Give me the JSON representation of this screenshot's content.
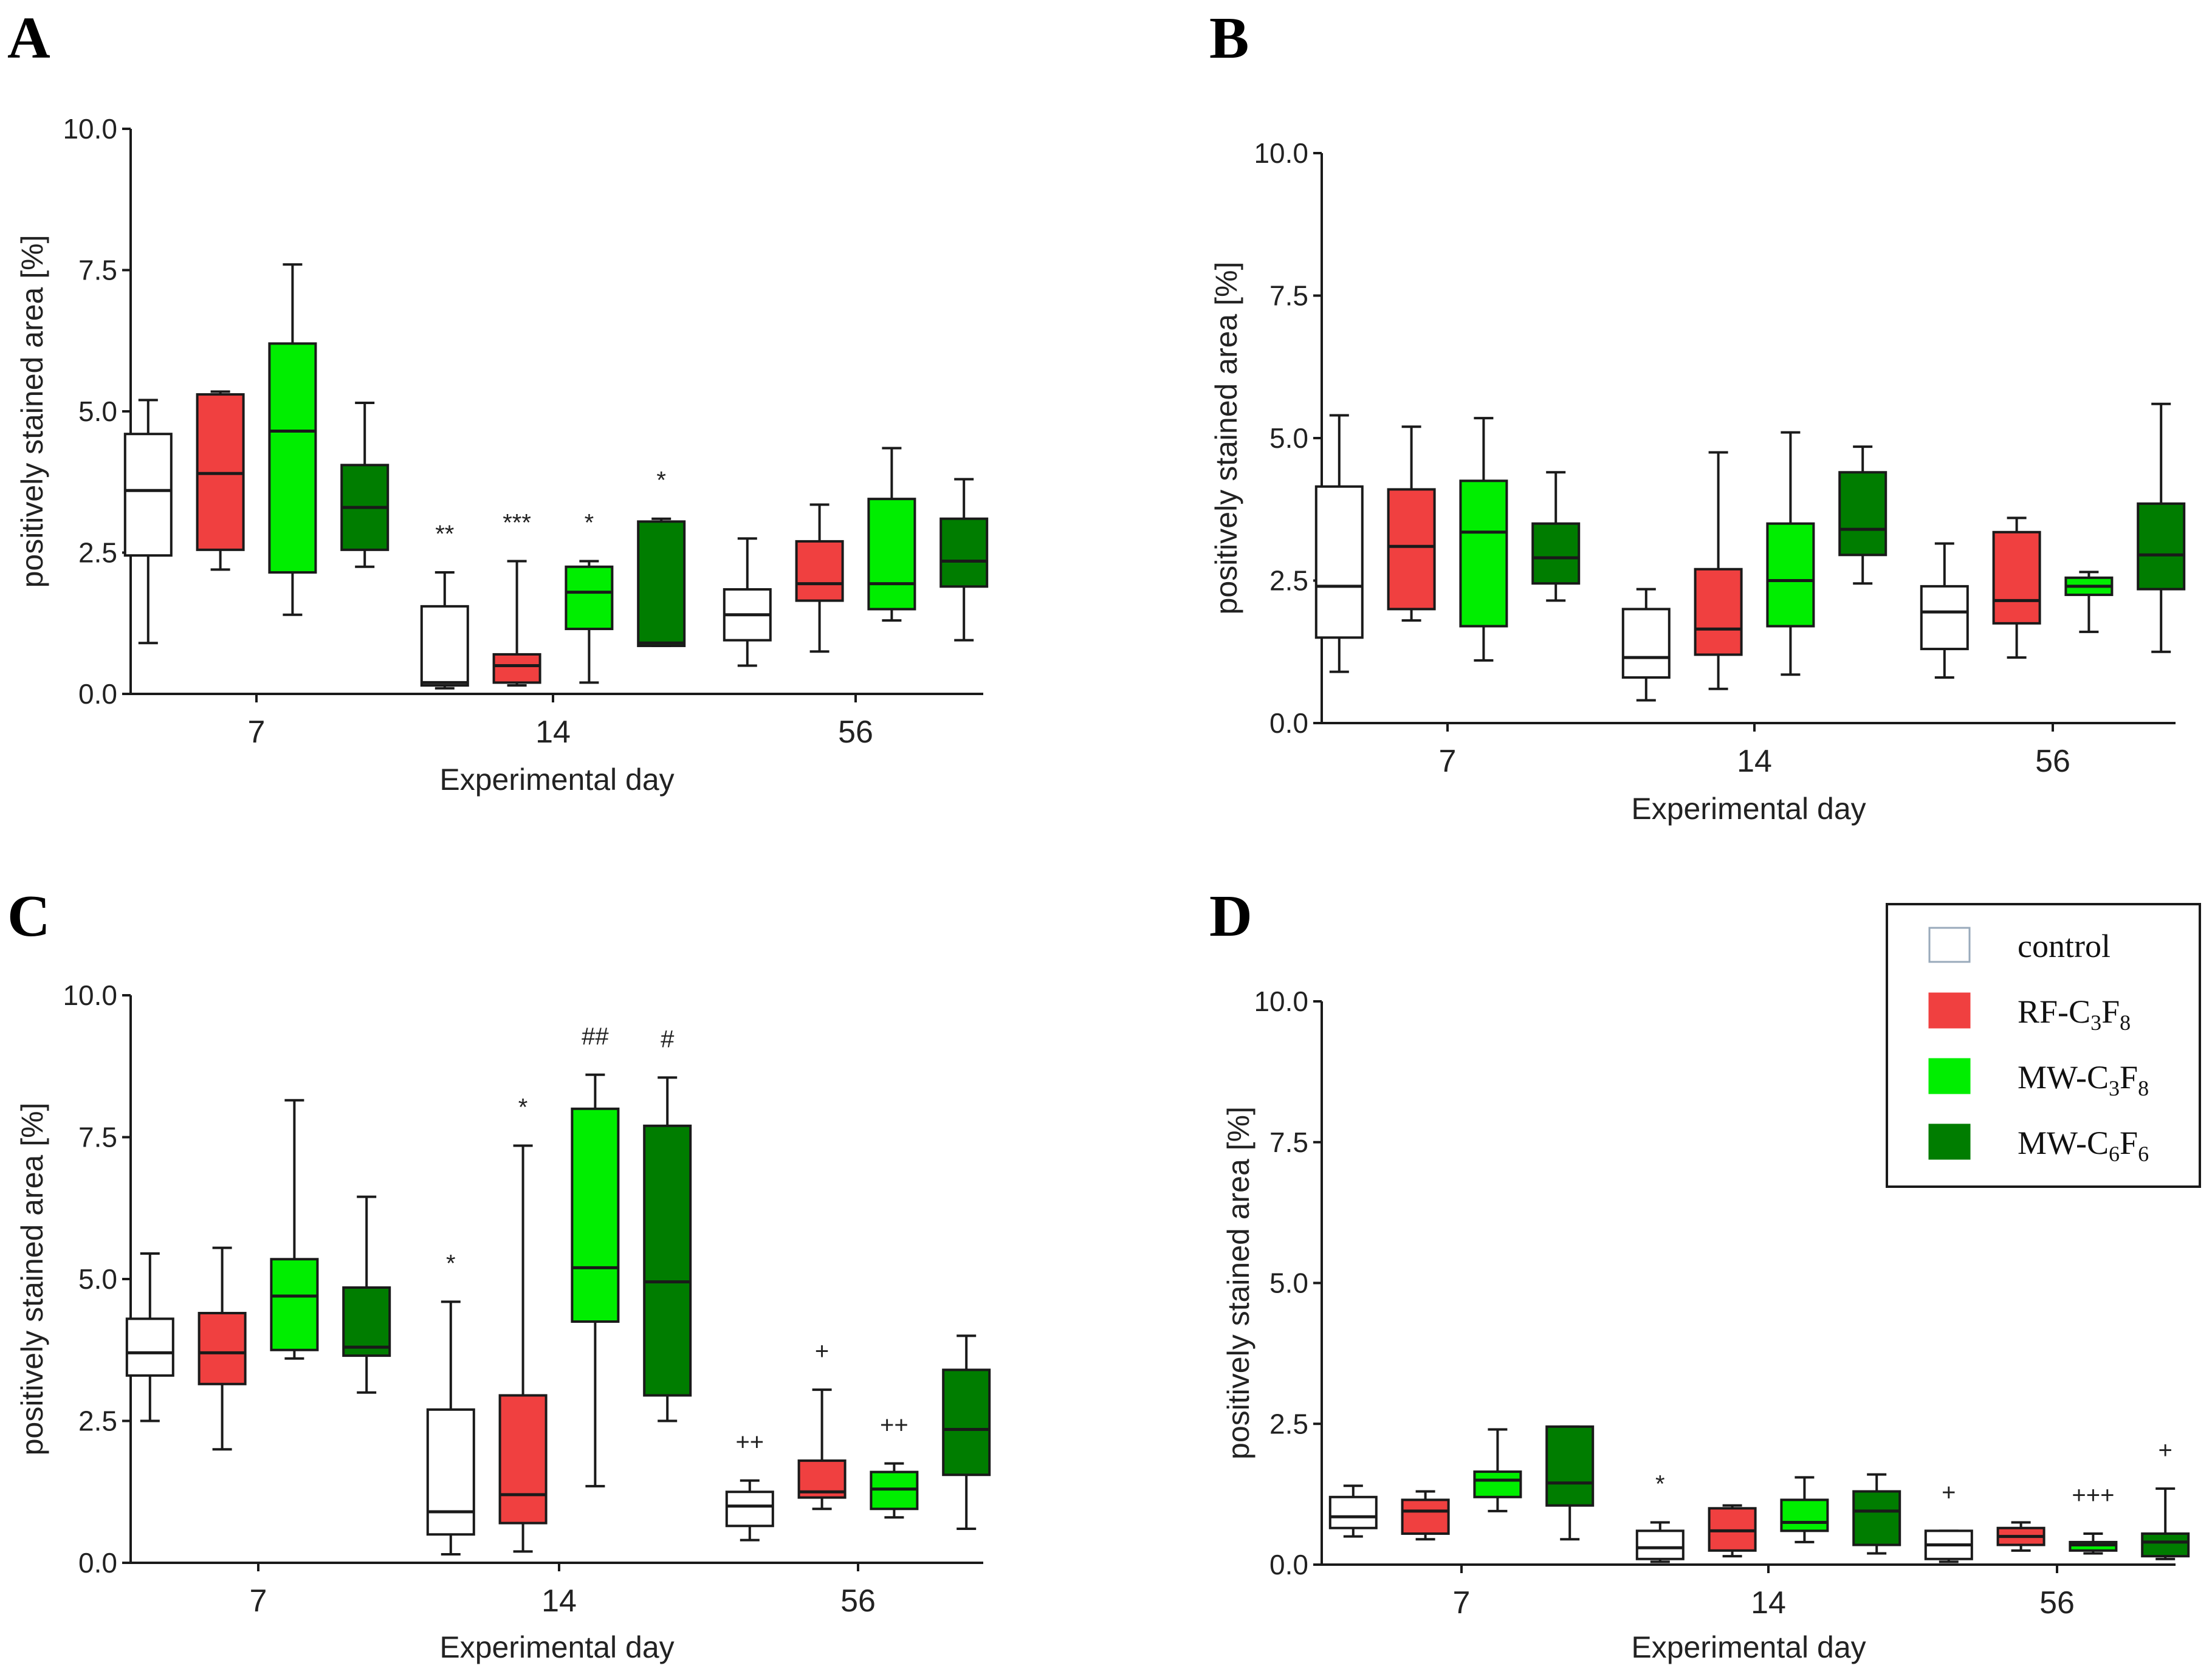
{
  "chart_data": [
    {
      "panel": "A",
      "type": "box",
      "xlabel": "Experimental day",
      "ylabel": "positively stained area [%]",
      "ylim": [
        0,
        10
      ],
      "yticks": [
        "0.0",
        "2.5",
        "5.0",
        "7.5",
        "10.0"
      ],
      "categories": [
        "7",
        "14",
        "56"
      ],
      "series": [
        {
          "name": "control",
          "boxes": [
            {
              "min": 0.9,
              "q1": 2.45,
              "median": 3.6,
              "q3": 4.6,
              "max": 5.2,
              "label": ""
            },
            {
              "min": 0.1,
              "q1": 0.15,
              "median": 0.2,
              "q3": 1.55,
              "max": 2.15,
              "label": "**"
            },
            {
              "min": 0.5,
              "q1": 0.95,
              "median": 1.4,
              "q3": 1.85,
              "max": 2.75,
              "label": ""
            }
          ]
        },
        {
          "name": "RF-C3F8",
          "boxes": [
            {
              "min": 2.2,
              "q1": 2.55,
              "median": 3.9,
              "q3": 5.3,
              "max": 5.35,
              "label": ""
            },
            {
              "min": 0.15,
              "q1": 0.2,
              "median": 0.5,
              "q3": 0.7,
              "max": 2.35,
              "label": "***"
            },
            {
              "min": 0.75,
              "q1": 1.65,
              "median": 1.95,
              "q3": 2.7,
              "max": 3.35,
              "label": ""
            }
          ]
        },
        {
          "name": "MW-C3F8",
          "boxes": [
            {
              "min": 1.4,
              "q1": 2.15,
              "median": 4.65,
              "q3": 6.2,
              "max": 7.6,
              "label": ""
            },
            {
              "min": 0.2,
              "q1": 1.15,
              "median": 1.8,
              "q3": 2.25,
              "max": 2.35,
              "label": "*"
            },
            {
              "min": 1.3,
              "q1": 1.5,
              "median": 1.95,
              "q3": 3.45,
              "max": 4.35,
              "label": ""
            }
          ]
        },
        {
          "name": "MW-C6F6",
          "boxes": [
            {
              "min": 2.25,
              "q1": 2.55,
              "median": 3.3,
              "q3": 4.05,
              "max": 5.15,
              "label": ""
            },
            {
              "min": 0.85,
              "q1": 0.85,
              "median": 0.9,
              "q3": 3.05,
              "max": 3.1,
              "label": "*"
            },
            {
              "min": 0.95,
              "q1": 1.9,
              "median": 2.35,
              "q3": 3.1,
              "max": 3.8,
              "label": ""
            }
          ]
        }
      ]
    },
    {
      "panel": "B",
      "type": "box",
      "xlabel": "Experimental day",
      "ylabel": "positively stained area [%]",
      "ylim": [
        0,
        10
      ],
      "yticks": [
        "0.0",
        "2.5",
        "5.0",
        "7.5",
        "10.0"
      ],
      "categories": [
        "7",
        "14",
        "56"
      ],
      "series": [
        {
          "name": "control",
          "boxes": [
            {
              "min": 0.9,
              "q1": 1.5,
              "median": 2.4,
              "q3": 4.15,
              "max": 5.4,
              "label": ""
            },
            {
              "min": 0.4,
              "q1": 0.8,
              "median": 1.15,
              "q3": 2.0,
              "max": 2.35,
              "label": ""
            },
            {
              "min": 0.8,
              "q1": 1.3,
              "median": 1.95,
              "q3": 2.4,
              "max": 3.15,
              "label": ""
            }
          ]
        },
        {
          "name": "RF-C3F8",
          "boxes": [
            {
              "min": 1.8,
              "q1": 2.0,
              "median": 3.1,
              "q3": 4.1,
              "max": 5.2,
              "label": ""
            },
            {
              "min": 0.6,
              "q1": 1.2,
              "median": 1.65,
              "q3": 2.7,
              "max": 4.75,
              "label": ""
            },
            {
              "min": 1.15,
              "q1": 1.75,
              "median": 2.15,
              "q3": 3.35,
              "max": 3.6,
              "label": ""
            }
          ]
        },
        {
          "name": "MW-C3F8",
          "boxes": [
            {
              "min": 1.1,
              "q1": 1.7,
              "median": 3.35,
              "q3": 4.25,
              "max": 5.35,
              "label": ""
            },
            {
              "min": 0.85,
              "q1": 1.7,
              "median": 2.5,
              "q3": 3.5,
              "max": 5.1,
              "label": ""
            },
            {
              "min": 1.6,
              "q1": 2.25,
              "median": 2.4,
              "q3": 2.55,
              "max": 2.65,
              "label": ""
            }
          ]
        },
        {
          "name": "MW-C6F6",
          "boxes": [
            {
              "min": 2.15,
              "q1": 2.45,
              "median": 2.9,
              "q3": 3.5,
              "max": 4.4,
              "label": ""
            },
            {
              "min": 2.45,
              "q1": 2.95,
              "median": 3.4,
              "q3": 4.4,
              "max": 4.85,
              "label": ""
            },
            {
              "min": 1.25,
              "q1": 2.35,
              "median": 2.95,
              "q3": 3.85,
              "max": 5.6,
              "label": ""
            }
          ]
        }
      ]
    },
    {
      "panel": "C",
      "type": "box",
      "xlabel": "Experimental day",
      "ylabel": "positively stained area [%]",
      "ylim": [
        0,
        10
      ],
      "yticks": [
        "0.0",
        "2.5",
        "5.0",
        "7.5",
        "10.0"
      ],
      "categories": [
        "7",
        "14",
        "56"
      ],
      "series": [
        {
          "name": "control",
          "boxes": [
            {
              "min": 2.5,
              "q1": 3.3,
              "median": 3.7,
              "q3": 4.3,
              "max": 5.45,
              "label": ""
            },
            {
              "min": 0.15,
              "q1": 0.5,
              "median": 0.9,
              "q3": 2.7,
              "max": 4.6,
              "label": "*"
            },
            {
              "min": 0.4,
              "q1": 0.65,
              "median": 1.0,
              "q3": 1.25,
              "max": 1.45,
              "label": "++"
            }
          ]
        },
        {
          "name": "RF-C3F8",
          "boxes": [
            {
              "min": 2.0,
              "q1": 3.15,
              "median": 3.7,
              "q3": 4.4,
              "max": 5.55,
              "label": ""
            },
            {
              "min": 0.2,
              "q1": 0.7,
              "median": 1.2,
              "q3": 2.95,
              "max": 7.35,
              "label": "*"
            },
            {
              "min": 0.95,
              "q1": 1.15,
              "median": 1.25,
              "q3": 1.8,
              "max": 3.05,
              "label": "+"
            }
          ]
        },
        {
          "name": "MW-C3F8",
          "boxes": [
            {
              "min": 3.6,
              "q1": 3.75,
              "median": 4.7,
              "q3": 5.35,
              "max": 8.15,
              "label": ""
            },
            {
              "min": 1.35,
              "q1": 4.25,
              "median": 5.2,
              "q3": 8.0,
              "max": 8.6,
              "label": "##"
            },
            {
              "min": 0.8,
              "q1": 0.95,
              "median": 1.3,
              "q3": 1.6,
              "max": 1.75,
              "label": "++"
            }
          ]
        },
        {
          "name": "MW-C6F6",
          "boxes": [
            {
              "min": 3.0,
              "q1": 3.65,
              "median": 3.8,
              "q3": 4.85,
              "max": 6.45,
              "label": ""
            },
            {
              "min": 2.5,
              "q1": 2.95,
              "median": 4.95,
              "q3": 7.7,
              "max": 8.55,
              "label": "#"
            },
            {
              "min": 0.6,
              "q1": 1.55,
              "median": 2.35,
              "q3": 3.4,
              "max": 4.0,
              "label": ""
            }
          ]
        }
      ]
    },
    {
      "panel": "D",
      "type": "box",
      "xlabel": "Experimental day",
      "ylabel": "positively stained area [%]",
      "ylim": [
        0,
        10
      ],
      "yticks": [
        "0.0",
        "2.5",
        "5.0",
        "7.5",
        "10.0"
      ],
      "categories": [
        "7",
        "14",
        "56"
      ],
      "series": [
        {
          "name": "control",
          "boxes": [
            {
              "min": 0.5,
              "q1": 0.65,
              "median": 0.85,
              "q3": 1.2,
              "max": 1.4,
              "label": ""
            },
            {
              "min": 0.05,
              "q1": 0.1,
              "median": 0.3,
              "q3": 0.6,
              "max": 0.75,
              "label": "*"
            },
            {
              "min": 0.05,
              "q1": 0.1,
              "median": 0.35,
              "q3": 0.6,
              "max": 0.6,
              "label": "+"
            }
          ]
        },
        {
          "name": "RF-C3F8",
          "boxes": [
            {
              "min": 0.45,
              "q1": 0.55,
              "median": 0.95,
              "q3": 1.15,
              "max": 1.3,
              "label": ""
            },
            {
              "min": 0.15,
              "q1": 0.25,
              "median": 0.6,
              "q3": 1.0,
              "max": 1.05,
              "label": ""
            },
            {
              "min": 0.25,
              "q1": 0.35,
              "median": 0.5,
              "q3": 0.65,
              "max": 0.75,
              "label": ""
            }
          ]
        },
        {
          "name": "MW-C3F8",
          "boxes": [
            {
              "min": 0.95,
              "q1": 1.2,
              "median": 1.5,
              "q3": 1.65,
              "max": 2.4,
              "label": ""
            },
            {
              "min": 0.4,
              "q1": 0.6,
              "median": 0.75,
              "q3": 1.15,
              "max": 1.55,
              "label": ""
            },
            {
              "min": 0.2,
              "q1": 0.25,
              "median": 0.35,
              "q3": 0.4,
              "max": 0.55,
              "label": "+++"
            }
          ]
        },
        {
          "name": "MW-C6F6",
          "boxes": [
            {
              "min": 0.45,
              "q1": 1.05,
              "median": 1.45,
              "q3": 2.45,
              "max": 2.45,
              "label": ""
            },
            {
              "min": 0.2,
              "q1": 0.35,
              "median": 0.95,
              "q3": 1.3,
              "max": 1.6,
              "label": ""
            },
            {
              "min": 0.1,
              "q1": 0.15,
              "median": 0.4,
              "q3": 0.55,
              "max": 1.35,
              "label": "+"
            }
          ]
        }
      ]
    }
  ],
  "legend": {
    "items": [
      {
        "name": "control",
        "base": "control",
        "sub1": "",
        "mid": "",
        "sub2": "",
        "color": "#ffffff"
      },
      {
        "name": "RF-C3F8",
        "base": "RF-C",
        "sub1": "3",
        "mid": "F",
        "sub2": "8",
        "color": "#f04040"
      },
      {
        "name": "MW-C3F8",
        "base": "MW-C",
        "sub1": "3",
        "mid": "F",
        "sub2": "8",
        "color": "#00ee00"
      },
      {
        "name": "MW-C6F6",
        "base": "MW-C",
        "sub1": "6",
        "mid": "F",
        "sub2": "6",
        "color": "#007d00"
      }
    ]
  },
  "colors": {
    "control": "#ffffff",
    "RF-C3F8": "#f04040",
    "MW-C3F8": "#00ee00",
    "MW-C6F6": "#007d00",
    "stroke": "#1a1a1a"
  }
}
